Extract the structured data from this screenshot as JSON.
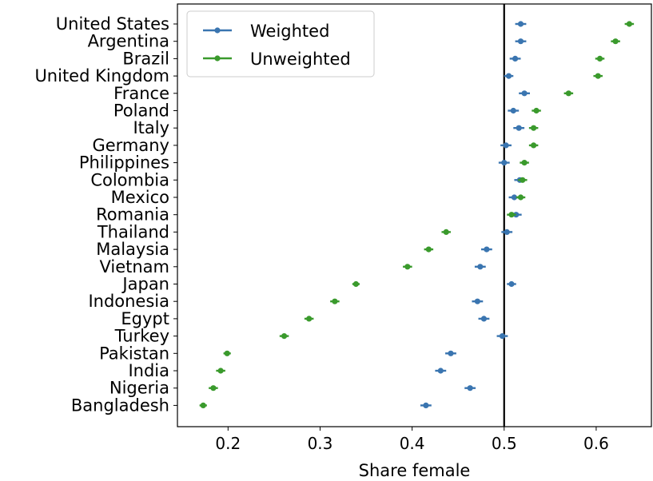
{
  "chart_data": {
    "type": "scatter",
    "title": "",
    "xlabel": "Share female",
    "ylabel": "",
    "xlim": [
      0.145,
      0.66
    ],
    "xticks": [
      0.2,
      0.3,
      0.4,
      0.5,
      0.6
    ],
    "xtick_labels": [
      "0.2",
      "0.3",
      "0.4",
      "0.5",
      "0.6"
    ],
    "reference_line_x": 0.5,
    "grid": false,
    "legend_position": "top-left",
    "categories": [
      "United States",
      "Argentina",
      "Brazil",
      "United Kingdom",
      "France",
      "Poland",
      "Italy",
      "Germany",
      "Philippines",
      "Colombia",
      "Mexico",
      "Romania",
      "Thailand",
      "Malaysia",
      "Vietnam",
      "Japan",
      "Indonesia",
      "Egypt",
      "Turkey",
      "Pakistan",
      "India",
      "Nigeria",
      "Bangladesh"
    ],
    "series": [
      {
        "name": "Weighted",
        "color": "#3a75b0",
        "values": [
          0.518,
          0.518,
          0.512,
          0.505,
          0.522,
          0.51,
          0.516,
          0.502,
          0.5,
          0.517,
          0.511,
          0.513,
          0.503,
          0.481,
          0.474,
          0.508,
          0.471,
          0.478,
          0.498,
          0.442,
          0.431,
          0.463,
          0.415
        ],
        "error": [
          0.006,
          0.006,
          0.006,
          0.005,
          0.006,
          0.006,
          0.006,
          0.006,
          0.006,
          0.006,
          0.006,
          0.006,
          0.006,
          0.006,
          0.006,
          0.005,
          0.006,
          0.006,
          0.006,
          0.006,
          0.006,
          0.006,
          0.006
        ]
      },
      {
        "name": "Unweighted",
        "color": "#3a9a2c",
        "values": [
          0.636,
          0.621,
          0.604,
          0.602,
          0.57,
          0.535,
          0.532,
          0.532,
          0.522,
          0.52,
          0.518,
          0.508,
          0.437,
          0.418,
          0.395,
          0.339,
          0.316,
          0.288,
          0.261,
          0.199,
          0.192,
          0.184,
          0.173
        ],
        "error": [
          0.005,
          0.005,
          0.005,
          0.005,
          0.005,
          0.005,
          0.005,
          0.005,
          0.005,
          0.005,
          0.005,
          0.005,
          0.005,
          0.005,
          0.005,
          0.004,
          0.005,
          0.005,
          0.005,
          0.004,
          0.005,
          0.005,
          0.004
        ]
      }
    ]
  },
  "colors": {
    "axis": "#000000",
    "reference_line": "#000000",
    "legend_border": "#cccccc"
  }
}
